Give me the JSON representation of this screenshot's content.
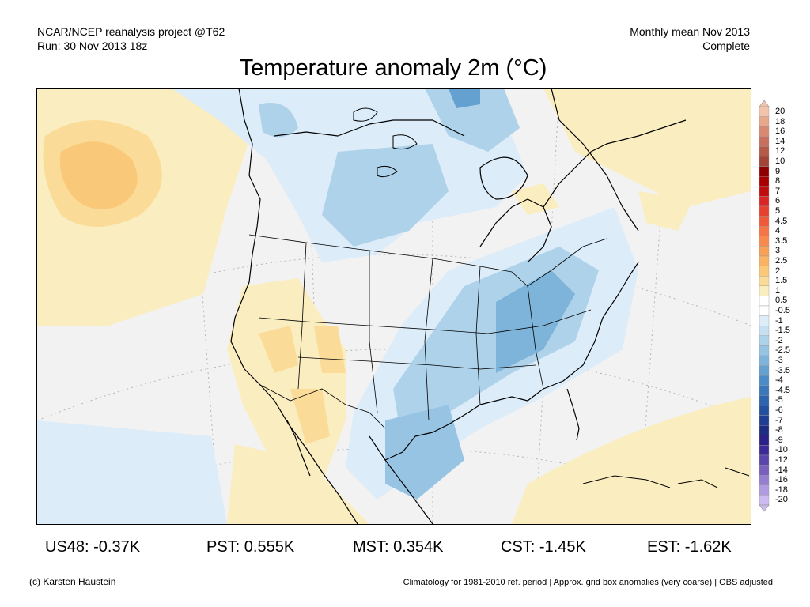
{
  "header": {
    "left_line1": "NCAR/NCEP reanalysis project @T62",
    "left_line2": "Run: 30 Nov 2013 18z",
    "right_line1": "Monthly mean Nov 2013",
    "right_line2": "Complete"
  },
  "title": "Temperature anomaly 2m (°C)",
  "colorbar": {
    "labels": [
      "20",
      "18",
      "16",
      "14",
      "12",
      "10",
      "9",
      "8",
      "7",
      "6",
      "5",
      "4.5",
      "4",
      "3.5",
      "3",
      "2.5",
      "2",
      "1.5",
      "1",
      "0.5",
      "-0.5",
      "-1",
      "-1.5",
      "-2",
      "-2.5",
      "-3",
      "-3.5",
      "-4",
      "-4.5",
      "-5",
      "-6",
      "-7",
      "-8",
      "-9",
      "-10",
      "-12",
      "-14",
      "-16",
      "-18",
      "-20"
    ],
    "colors": [
      "#f2c4ac",
      "#e8a88c",
      "#d88a70",
      "#c77060",
      "#b55a48",
      "#a34438",
      "#8e0000",
      "#a80000",
      "#c00c0c",
      "#d82626",
      "#e84030",
      "#f05a3a",
      "#f57448",
      "#f88a50",
      "#f8a058",
      "#f8b464",
      "#f9c878",
      "#fadc98",
      "#faedc0",
      "#ffffff",
      "#ffffff",
      "#dcecf8",
      "#c6e0f2",
      "#aed2ea",
      "#98c4e4",
      "#7eb4da",
      "#64a0d0",
      "#4c8cc6",
      "#3a78ba",
      "#2c64ae",
      "#2450a0",
      "#203e92",
      "#1e2c82",
      "#2a2088",
      "#3c2a98",
      "#5a46aa",
      "#7860bc",
      "#967ed0",
      "#b09ae0",
      "#ccbaf0"
    ]
  },
  "stats": [
    {
      "label": "US48: -0.37K"
    },
    {
      "label": "PST: 0.555K"
    },
    {
      "label": "MST: 0.354K"
    },
    {
      "label": "CST: -1.45K"
    },
    {
      "label": "EST: -1.62K"
    }
  ],
  "footer": {
    "left": "(c) Karsten Haustein",
    "right": "Climatology for 1981-2010 ref. period | Approx. grid box anomalies (very coarse) | OBS adjusted"
  }
}
